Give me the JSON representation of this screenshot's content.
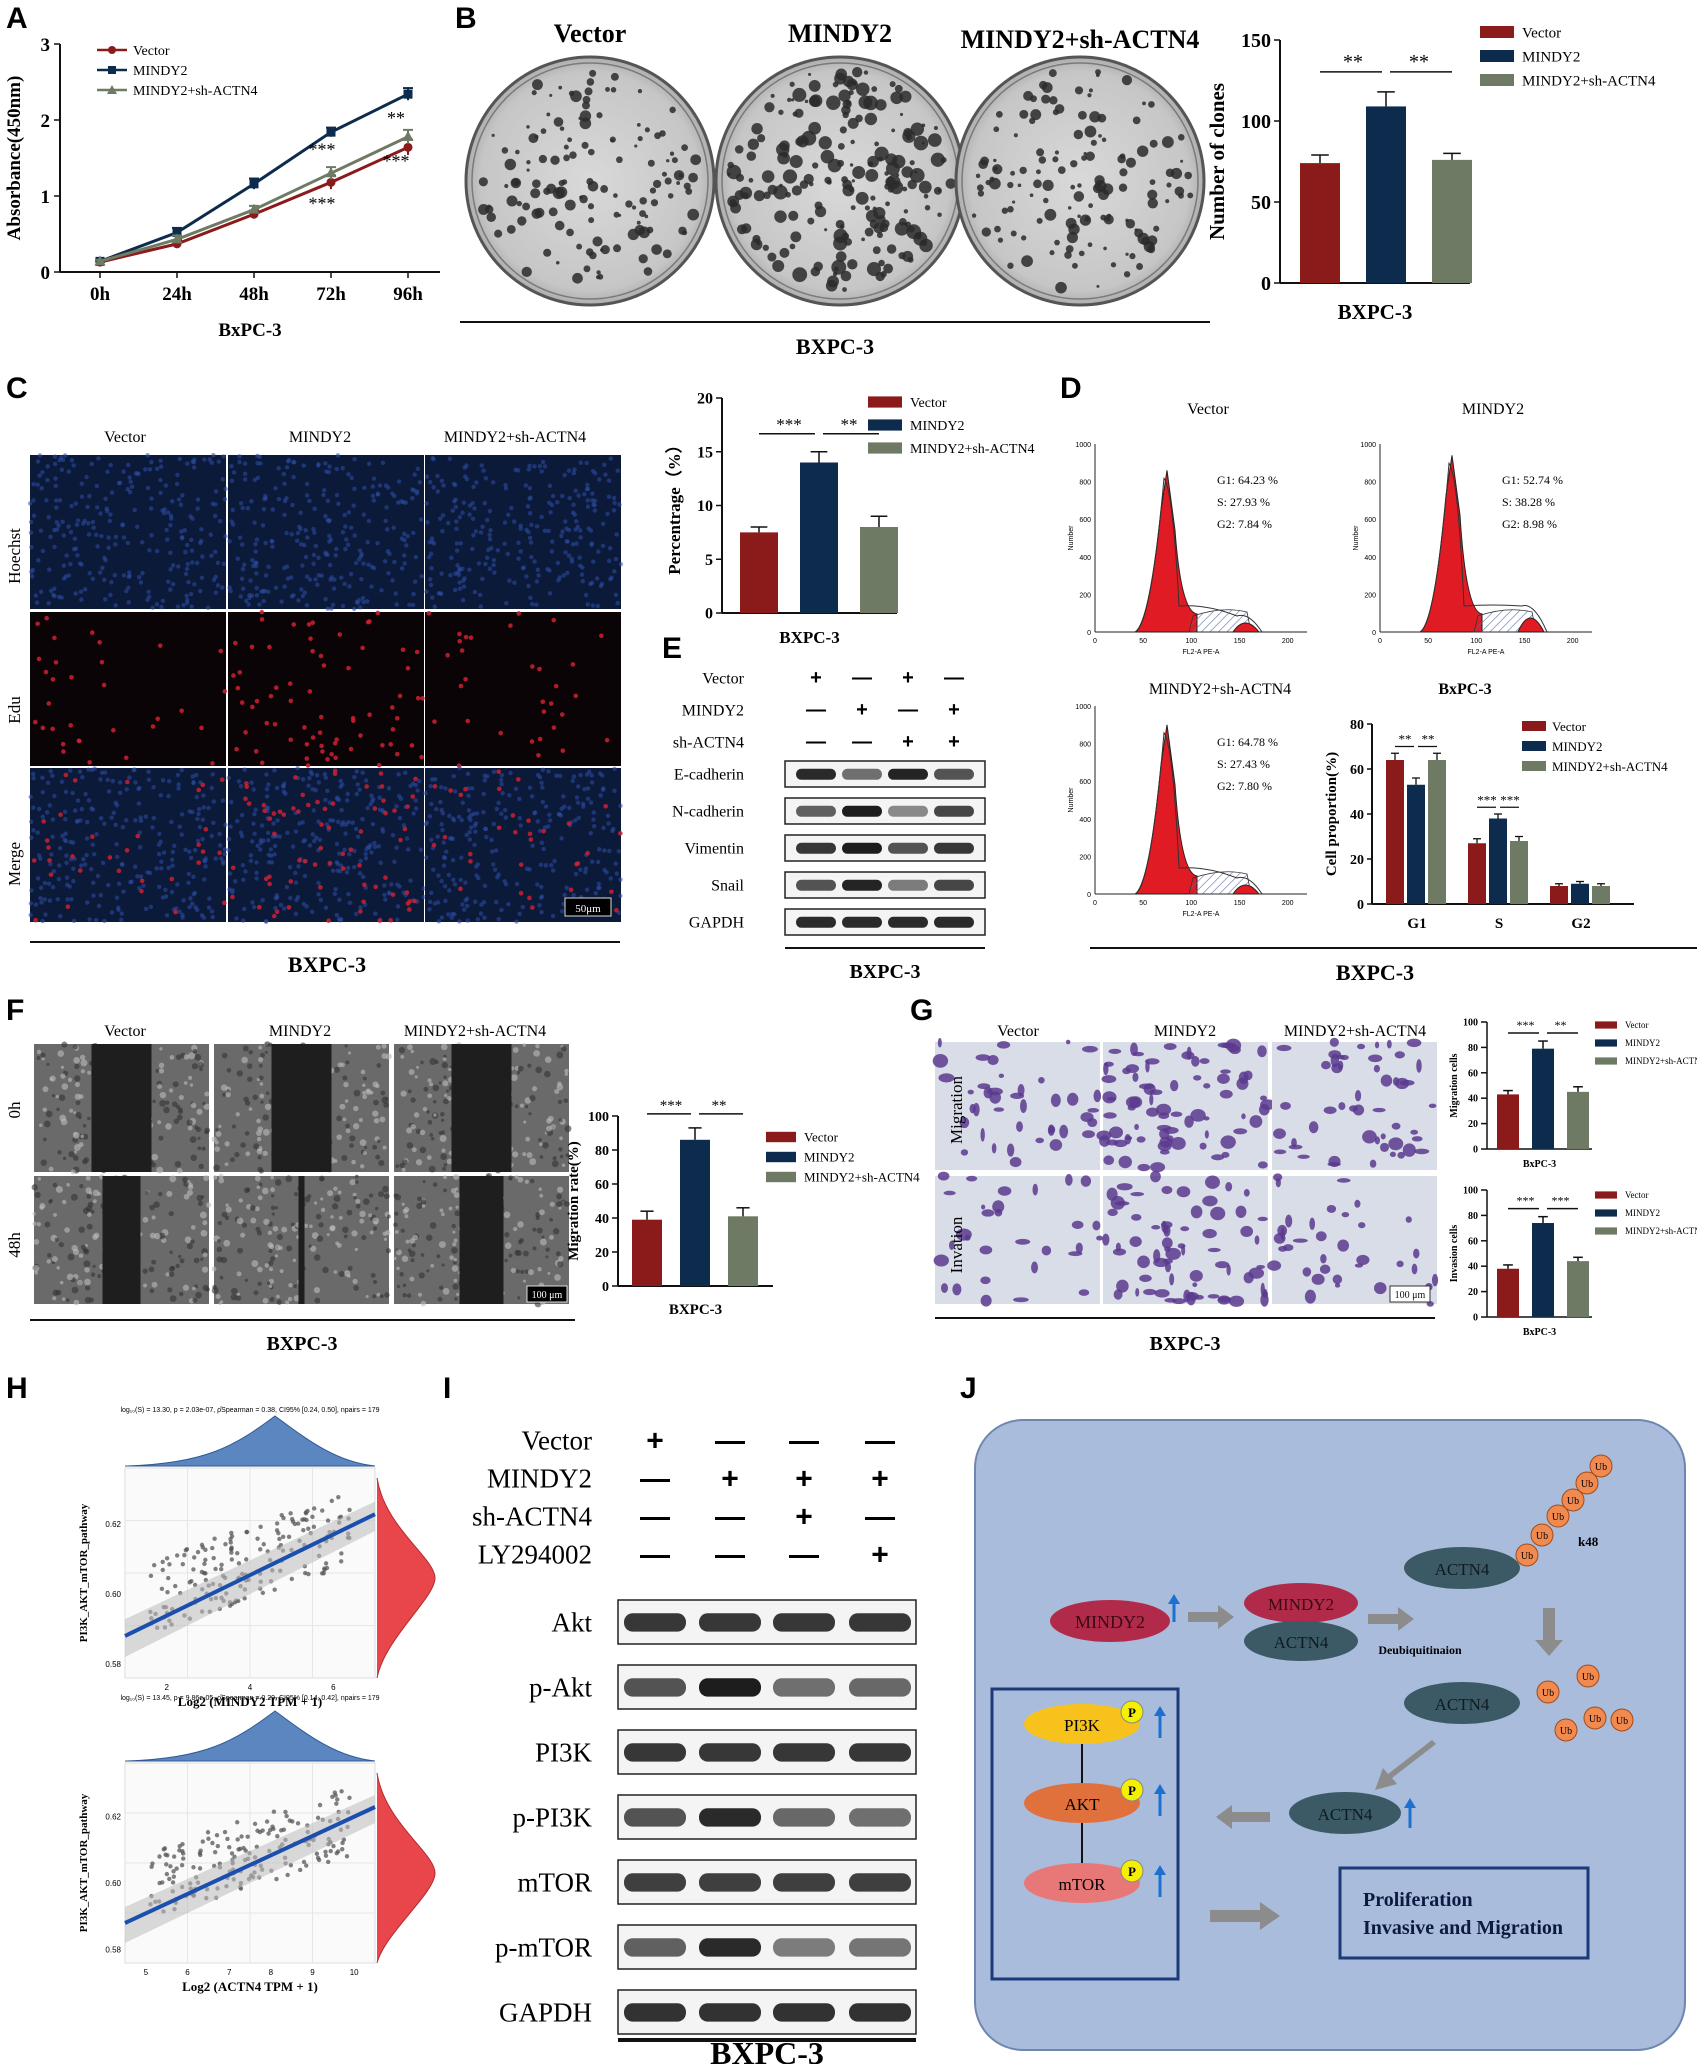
{
  "panel_labels": [
    "A",
    "B",
    "C",
    "D",
    "E",
    "F",
    "G",
    "H",
    "I",
    "J"
  ],
  "colors": {
    "vector": "#8b1a1a",
    "mindy2": "#0d2c4d",
    "sh": "#6e7a64"
  },
  "legend3": [
    "Vector",
    "MINDY2",
    "MINDY2+sh-ACTN4"
  ],
  "panelA": {
    "chart_data": {
      "type": "line",
      "x": [
        "0h",
        "24h",
        "48h",
        "72h",
        "96h"
      ],
      "xlabel": "BxPC-3",
      "ylabel": "Absorbance(450nm)",
      "ylim": [
        0,
        3
      ],
      "yticks": [
        "0",
        "1",
        "2",
        "3"
      ],
      "series": [
        {
          "name": "Vector",
          "values": [
            0.13,
            0.37,
            0.76,
            1.18,
            1.64
          ]
        },
        {
          "name": "MINDY2",
          "values": [
            0.14,
            0.52,
            1.16,
            1.84,
            2.34
          ]
        },
        {
          "name": "MINDY2+sh-ACTN4",
          "values": [
            0.14,
            0.43,
            0.82,
            1.3,
            1.78
          ]
        }
      ],
      "annotations": [
        "**",
        "***",
        "***",
        "***"
      ]
    }
  },
  "panelB": {
    "plate_labels": [
      "Vector",
      "MINDY2",
      "MINDY2+sh-ACTN4"
    ],
    "caption": "BXPC-3",
    "chart_data": {
      "type": "bar",
      "categories": [
        "Vector",
        "MINDY2",
        "MINDY2+sh-ACTN4"
      ],
      "values": [
        74,
        109,
        76
      ],
      "errors": [
        5,
        9,
        4
      ],
      "ylabel": "Number of clones",
      "xlabel": "BXPC-3",
      "ylim": [
        0,
        150
      ],
      "yticks": [
        "0",
        "50",
        "100",
        "150"
      ],
      "sig": [
        "**",
        "**"
      ]
    }
  },
  "panelC": {
    "col_labels": [
      "Vector",
      "MINDY2",
      "MINDY2+sh-ACTN4"
    ],
    "row_labels": [
      "Hoechst",
      "Edu",
      "Merge"
    ],
    "scale": "50μm",
    "caption": "BXPC-3",
    "chart_data": {
      "type": "bar",
      "categories": [
        "Vector",
        "MINDY2",
        "MINDY2+sh-ACTN4"
      ],
      "values": [
        7.5,
        14.0,
        8.0
      ],
      "errors": [
        0.5,
        1.0,
        1.0
      ],
      "ylabel": "Percentrage（%）",
      "xlabel": "BXPC-3",
      "ylim": [
        0,
        20
      ],
      "yticks": [
        "0",
        "5",
        "10",
        "15",
        "20"
      ],
      "sig": [
        "***",
        "**"
      ]
    }
  },
  "panelD": {
    "hist_titles": [
      "Vector",
      "MINDY2",
      "MINDY2+sh-ACTN4"
    ],
    "stats": [
      [
        "G1: 64.23 %",
        "S: 27.93 %",
        "G2: 7.84 %"
      ],
      [
        "G1: 52.74 %",
        "S: 38.28 %",
        "G2: 8.98 %"
      ],
      [
        "G1: 64.78 %",
        "S: 27.43 %",
        "G2: 7.80 %"
      ]
    ],
    "hist_xlabel": "FL2-A PE-A",
    "hist_ylabel": "Number",
    "hist_xticks": [
      "0",
      "50",
      "100",
      "150",
      "200"
    ],
    "hist_yticks": [
      "0",
      "200",
      "400",
      "600",
      "800",
      "1000"
    ],
    "caption": "BXPC-3",
    "chart_data": {
      "type": "bar",
      "title": "BxPC-3",
      "categories": [
        "G1",
        "S",
        "G2"
      ],
      "series": [
        {
          "name": "Vector",
          "values": [
            64,
            27,
            8
          ]
        },
        {
          "name": "MINDY2",
          "values": [
            53,
            38,
            9
          ]
        },
        {
          "name": "MINDY2+sh-ACTN4",
          "values": [
            64,
            28,
            8
          ]
        }
      ],
      "errors": [
        [
          3,
          2,
          1
        ],
        [
          3,
          2,
          1
        ],
        [
          3,
          2,
          1
        ]
      ],
      "ylabel": "Cell proportion(%)",
      "ylim": [
        0,
        80
      ],
      "yticks": [
        "0",
        "20",
        "40",
        "60",
        "80"
      ],
      "sig": [
        "**",
        "**",
        "***",
        "***"
      ]
    }
  },
  "panelE": {
    "conditions": [
      {
        "label": "Vector",
        "marks": [
          "+",
          "—",
          "+",
          "—"
        ]
      },
      {
        "label": "MINDY2",
        "marks": [
          "—",
          "+",
          "—",
          "+"
        ]
      },
      {
        "label": "sh-ACTN4",
        "marks": [
          "—",
          "—",
          "+",
          "+"
        ]
      }
    ],
    "blots": [
      "E-cadherin",
      "N-cadherin",
      "Vimentin",
      "Snail",
      "GAPDH"
    ],
    "caption": "BXPC-3"
  },
  "panelF": {
    "col_labels": [
      "Vector",
      "MINDY2",
      "MINDY2+sh-ACTN4"
    ],
    "row_labels": [
      "0h",
      "48h"
    ],
    "scale": "100 μm",
    "caption": "BXPC-3",
    "chart_data": {
      "type": "bar",
      "categories": [
        "Vector",
        "MINDY2",
        "MINDY2+sh-ACTN4"
      ],
      "values": [
        39,
        86,
        41
      ],
      "errors": [
        5,
        7,
        5
      ],
      "ylabel": "Migration rate(%)",
      "xlabel": "BXPC-3",
      "ylim": [
        0,
        100
      ],
      "yticks": [
        "0",
        "20",
        "40",
        "60",
        "80",
        "100"
      ],
      "sig": [
        "***",
        "**"
      ]
    }
  },
  "panelG": {
    "col_labels": [
      "Vector",
      "MINDY2",
      "MINDY2+sh-ACTN4"
    ],
    "row_labels": [
      "Migration",
      "Invation"
    ],
    "scale": "100 μm",
    "caption": "BXPC-3",
    "chart_data": [
      {
        "type": "bar",
        "categories": [
          "Vector",
          "MINDY2",
          "MINDY2+sh-ACTN4"
        ],
        "values": [
          43,
          79,
          45
        ],
        "errors": [
          3,
          6,
          4
        ],
        "ylabel": "Migration cells",
        "xlabel": "BxPC-3",
        "ylim": [
          0,
          100
        ],
        "yticks": [
          "0",
          "20",
          "40",
          "60",
          "80",
          "100"
        ],
        "sig": [
          "***",
          "**"
        ]
      },
      {
        "type": "bar",
        "categories": [
          "Vector",
          "MINDY2",
          "MINDY2+sh-ACTN4"
        ],
        "values": [
          38,
          74,
          44
        ],
        "errors": [
          3,
          5,
          3
        ],
        "ylabel": "Invasion cells",
        "xlabel": "BxPC-3",
        "ylim": [
          0,
          100
        ],
        "yticks": [
          "0",
          "20",
          "40",
          "60",
          "80",
          "100"
        ],
        "sig": [
          "***",
          "***"
        ]
      }
    ]
  },
  "panelH": {
    "plots": [
      {
        "subtitle": "log₁₀(S) = 13.30, p = 2.03e-07, ρ̂Spearman = 0.38, CI95% [0.24, 0.50], npairs = 179",
        "xlabel": "Log2 (MINDY2 TPM + 1)",
        "ylabel": "PI3K_AKT_mTOR_pathway",
        "xticks": [
          "2",
          "4",
          "6"
        ],
        "yticks": [
          "0.58",
          "0.60",
          "0.62"
        ]
      },
      {
        "subtitle": "log₁₀(S) = 13.45, p = 9.86e-05, ρ̂Spearman = 0.29, CI95% [0.14, 0.42], npairs = 179",
        "xlabel": "Log2 (ACTN4 TPM + 1)",
        "ylabel": "PI3K_AKT_mTOR_pathway",
        "xticks": [
          "5",
          "6",
          "7",
          "8",
          "9",
          "10"
        ],
        "yticks": [
          "0.58",
          "0.60",
          "0.62"
        ]
      }
    ]
  },
  "panelI": {
    "conditions": [
      {
        "label": "Vector",
        "marks": [
          "+",
          "—",
          "—",
          "—"
        ]
      },
      {
        "label": "MINDY2",
        "marks": [
          "—",
          "+",
          "+",
          "+"
        ]
      },
      {
        "label": "sh-ACTN4",
        "marks": [
          "—",
          "—",
          "+",
          "—"
        ]
      },
      {
        "label": "LY294002",
        "marks": [
          "—",
          "—",
          "—",
          "+"
        ]
      }
    ],
    "blots": [
      "Akt",
      "p-Akt",
      "PI3K",
      "p-PI3K",
      "mTOR",
      "p-mTOR",
      "GAPDH"
    ],
    "caption": "BXPC-3"
  },
  "panelJ": {
    "mindy2": "MINDY2",
    "complex_top": "MINDY2",
    "complex_bottom": "ACTN4",
    "actn4": "ACTN4",
    "ub": "Ub",
    "k48": "k48",
    "deubiq": "Deubiquitinaion",
    "pi3k": "PI3K",
    "akt": "AKT",
    "mtor": "mTOR",
    "p": "P",
    "outcome1": "Proliferation",
    "outcome2": "Invasive and Migration"
  }
}
